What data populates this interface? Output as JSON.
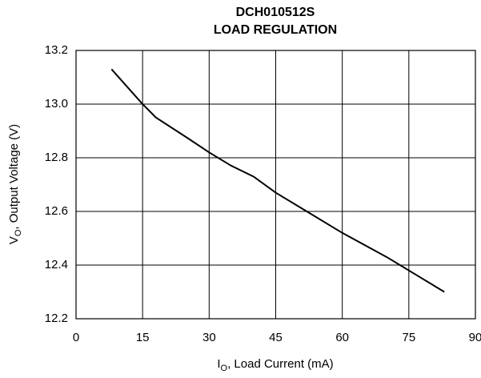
{
  "chart_data": {
    "type": "line",
    "title": [
      "DCH010512S",
      "LOAD REGULATION"
    ],
    "x_label": {
      "main": "I",
      "sub": "O",
      "rest": ", Load Current (mA)"
    },
    "y_label": {
      "main": "V",
      "sub": "O",
      "rest": ", Output Voltage (V)"
    },
    "x": [
      8,
      15,
      18,
      25,
      30,
      35,
      40,
      45,
      52,
      60,
      70,
      75,
      83
    ],
    "series": [
      {
        "color": "#000000",
        "values": [
          13.13,
          13.0,
          12.95,
          12.875,
          12.82,
          12.77,
          12.73,
          12.67,
          12.6,
          12.52,
          12.43,
          12.38,
          12.3
        ]
      }
    ],
    "xlim": [
      0,
      90
    ],
    "xticks": [
      0,
      15,
      30,
      45,
      60,
      75,
      90
    ],
    "ylim": [
      12.2,
      13.2
    ],
    "yticks": [
      12.2,
      12.4,
      12.6,
      12.8,
      {
        "value": 13.0,
        "label": "13.0"
      },
      13.2
    ],
    "grid": true
  }
}
